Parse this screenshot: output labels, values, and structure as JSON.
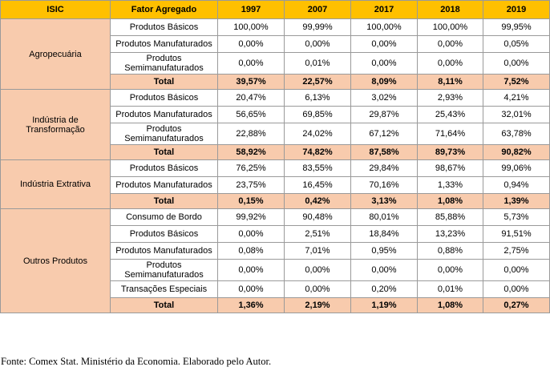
{
  "headers": [
    "ISIC",
    "Fator Agregado",
    "1997",
    "2007",
    "2017",
    "2018",
    "2019"
  ],
  "groups": [
    {
      "isic": "Agropecuária",
      "rows": [
        {
          "fator": "Produtos Básicos",
          "values": [
            "100,00%",
            "99,99%",
            "100,00%",
            "100,00%",
            "99,95%"
          ]
        },
        {
          "fator": "Produtos Manufaturados",
          "values": [
            "0,00%",
            "0,00%",
            "0,00%",
            "0,00%",
            "0,05%"
          ]
        },
        {
          "fator": "Produtos Semimanufaturados",
          "values": [
            "0,00%",
            "0,01%",
            "0,00%",
            "0,00%",
            "0,00%"
          ]
        }
      ],
      "total": {
        "label": "Total",
        "values": [
          "39,57%",
          "22,57%",
          "8,09%",
          "8,11%",
          "7,52%"
        ]
      }
    },
    {
      "isic": "Indústria de Transformação",
      "rows": [
        {
          "fator": "Produtos Básicos",
          "values": [
            "20,47%",
            "6,13%",
            "3,02%",
            "2,93%",
            "4,21%"
          ]
        },
        {
          "fator": "Produtos Manufaturados",
          "values": [
            "56,65%",
            "69,85%",
            "29,87%",
            "25,43%",
            "32,01%"
          ]
        },
        {
          "fator": "Produtos Semimanufaturados",
          "values": [
            "22,88%",
            "24,02%",
            "67,12%",
            "71,64%",
            "63,78%"
          ]
        }
      ],
      "total": {
        "label": "Total",
        "values": [
          "58,92%",
          "74,82%",
          "87,58%",
          "89,73%",
          "90,82%"
        ]
      }
    },
    {
      "isic": "Indústria Extrativa",
      "rows": [
        {
          "fator": "Produtos Básicos",
          "values": [
            "76,25%",
            "83,55%",
            "29,84%",
            "98,67%",
            "99,06%"
          ]
        },
        {
          "fator": "Produtos Manufaturados",
          "values": [
            "23,75%",
            "16,45%",
            "70,16%",
            "1,33%",
            "0,94%"
          ]
        }
      ],
      "total": {
        "label": "Total",
        "values": [
          "0,15%",
          "0,42%",
          "3,13%",
          "1,08%",
          "1,39%"
        ]
      }
    },
    {
      "isic": "Outros Produtos",
      "rows": [
        {
          "fator": "Consumo de Bordo",
          "values": [
            "99,92%",
            "90,48%",
            "80,01%",
            "85,88%",
            "5,73%"
          ]
        },
        {
          "fator": "Produtos Básicos",
          "values": [
            "0,00%",
            "2,51%",
            "18,84%",
            "13,23%",
            "91,51%"
          ]
        },
        {
          "fator": "Produtos Manufaturados",
          "values": [
            "0,08%",
            "7,01%",
            "0,95%",
            "0,88%",
            "2,75%"
          ]
        },
        {
          "fator": "Produtos Semimanufaturados",
          "values": [
            "0,00%",
            "0,00%",
            "0,00%",
            "0,00%",
            "0,00%"
          ]
        },
        {
          "fator": "Transações Especiais",
          "values": [
            "0,00%",
            "0,00%",
            "0,20%",
            "0,01%",
            "0,00%"
          ]
        }
      ],
      "total": {
        "label": "Total",
        "values": [
          "1,36%",
          "2,19%",
          "1,19%",
          "1,08%",
          "0,27%"
        ]
      }
    }
  ],
  "caption": "Fonte: Comex Stat. Ministério da Economia. Elaborado pelo Autor.",
  "colors": {
    "header": "#ffc000",
    "isic_and_total": "#f8cbad",
    "border": "#9a9a9a"
  }
}
